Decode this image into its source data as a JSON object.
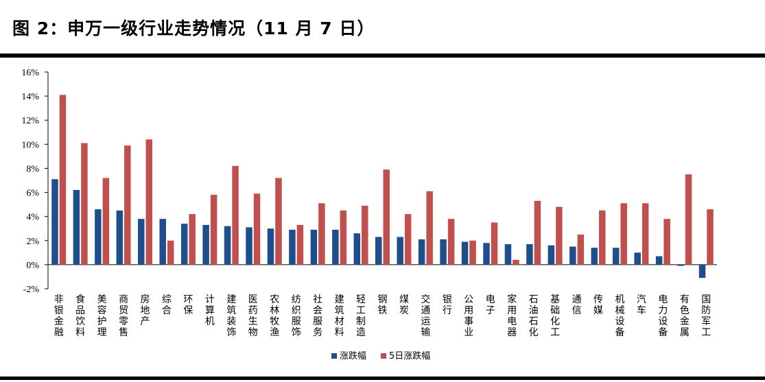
{
  "figure": {
    "title": "图 2：申万一级行业走势情况（11 月 7 日）"
  },
  "colors": {
    "series1": "#1f4e8c",
    "series2": "#c0504d",
    "axis": "#000000"
  },
  "chart_data": {
    "type": "bar",
    "title": "",
    "xlabel": "",
    "ylabel": "",
    "ylim": [
      -2,
      16
    ],
    "yticks": [
      -2,
      0,
      2,
      4,
      6,
      8,
      10,
      12,
      14,
      16
    ],
    "ytick_labels": [
      "-2%",
      "0%",
      "2%",
      "4%",
      "6%",
      "8%",
      "10%",
      "12%",
      "14%",
      "16%"
    ],
    "grid": false,
    "legend_position": "bottom",
    "categories": [
      "非银金融",
      "食品饮料",
      "美容护理",
      "商贸零售",
      "房地产",
      "综合",
      "环保",
      "计算机",
      "建筑装饰",
      "医药生物",
      "农林牧渔",
      "纺织服饰",
      "社会服务",
      "建筑材料",
      "轻工制造",
      "钢铁",
      "煤炭",
      "交通运输",
      "银行",
      "公用事业",
      "电子",
      "家用电器",
      "石油石化",
      "基础化工",
      "通信",
      "传媒",
      "机械设备",
      "汽车",
      "电力设备",
      "有色金属",
      "国防军工"
    ],
    "series": [
      {
        "name": "涨跌幅",
        "values": [
          7.1,
          6.2,
          4.6,
          4.5,
          3.8,
          3.8,
          3.4,
          3.3,
          3.2,
          3.1,
          3.0,
          2.9,
          2.9,
          2.9,
          2.6,
          2.3,
          2.3,
          2.1,
          2.1,
          1.9,
          1.8,
          1.7,
          1.7,
          1.6,
          1.5,
          1.4,
          1.4,
          1.0,
          0.7,
          -0.1,
          -1.1
        ]
      },
      {
        "name": "5日涨跌幅",
        "values": [
          14.1,
          10.1,
          7.2,
          9.9,
          10.4,
          2.0,
          4.2,
          5.8,
          8.2,
          5.9,
          7.2,
          3.3,
          5.1,
          4.5,
          4.9,
          7.9,
          4.2,
          6.1,
          3.8,
          2.0,
          3.5,
          0.4,
          5.3,
          4.8,
          2.5,
          4.5,
          5.1,
          5.1,
          3.8,
          7.5,
          4.6
        ]
      }
    ]
  }
}
